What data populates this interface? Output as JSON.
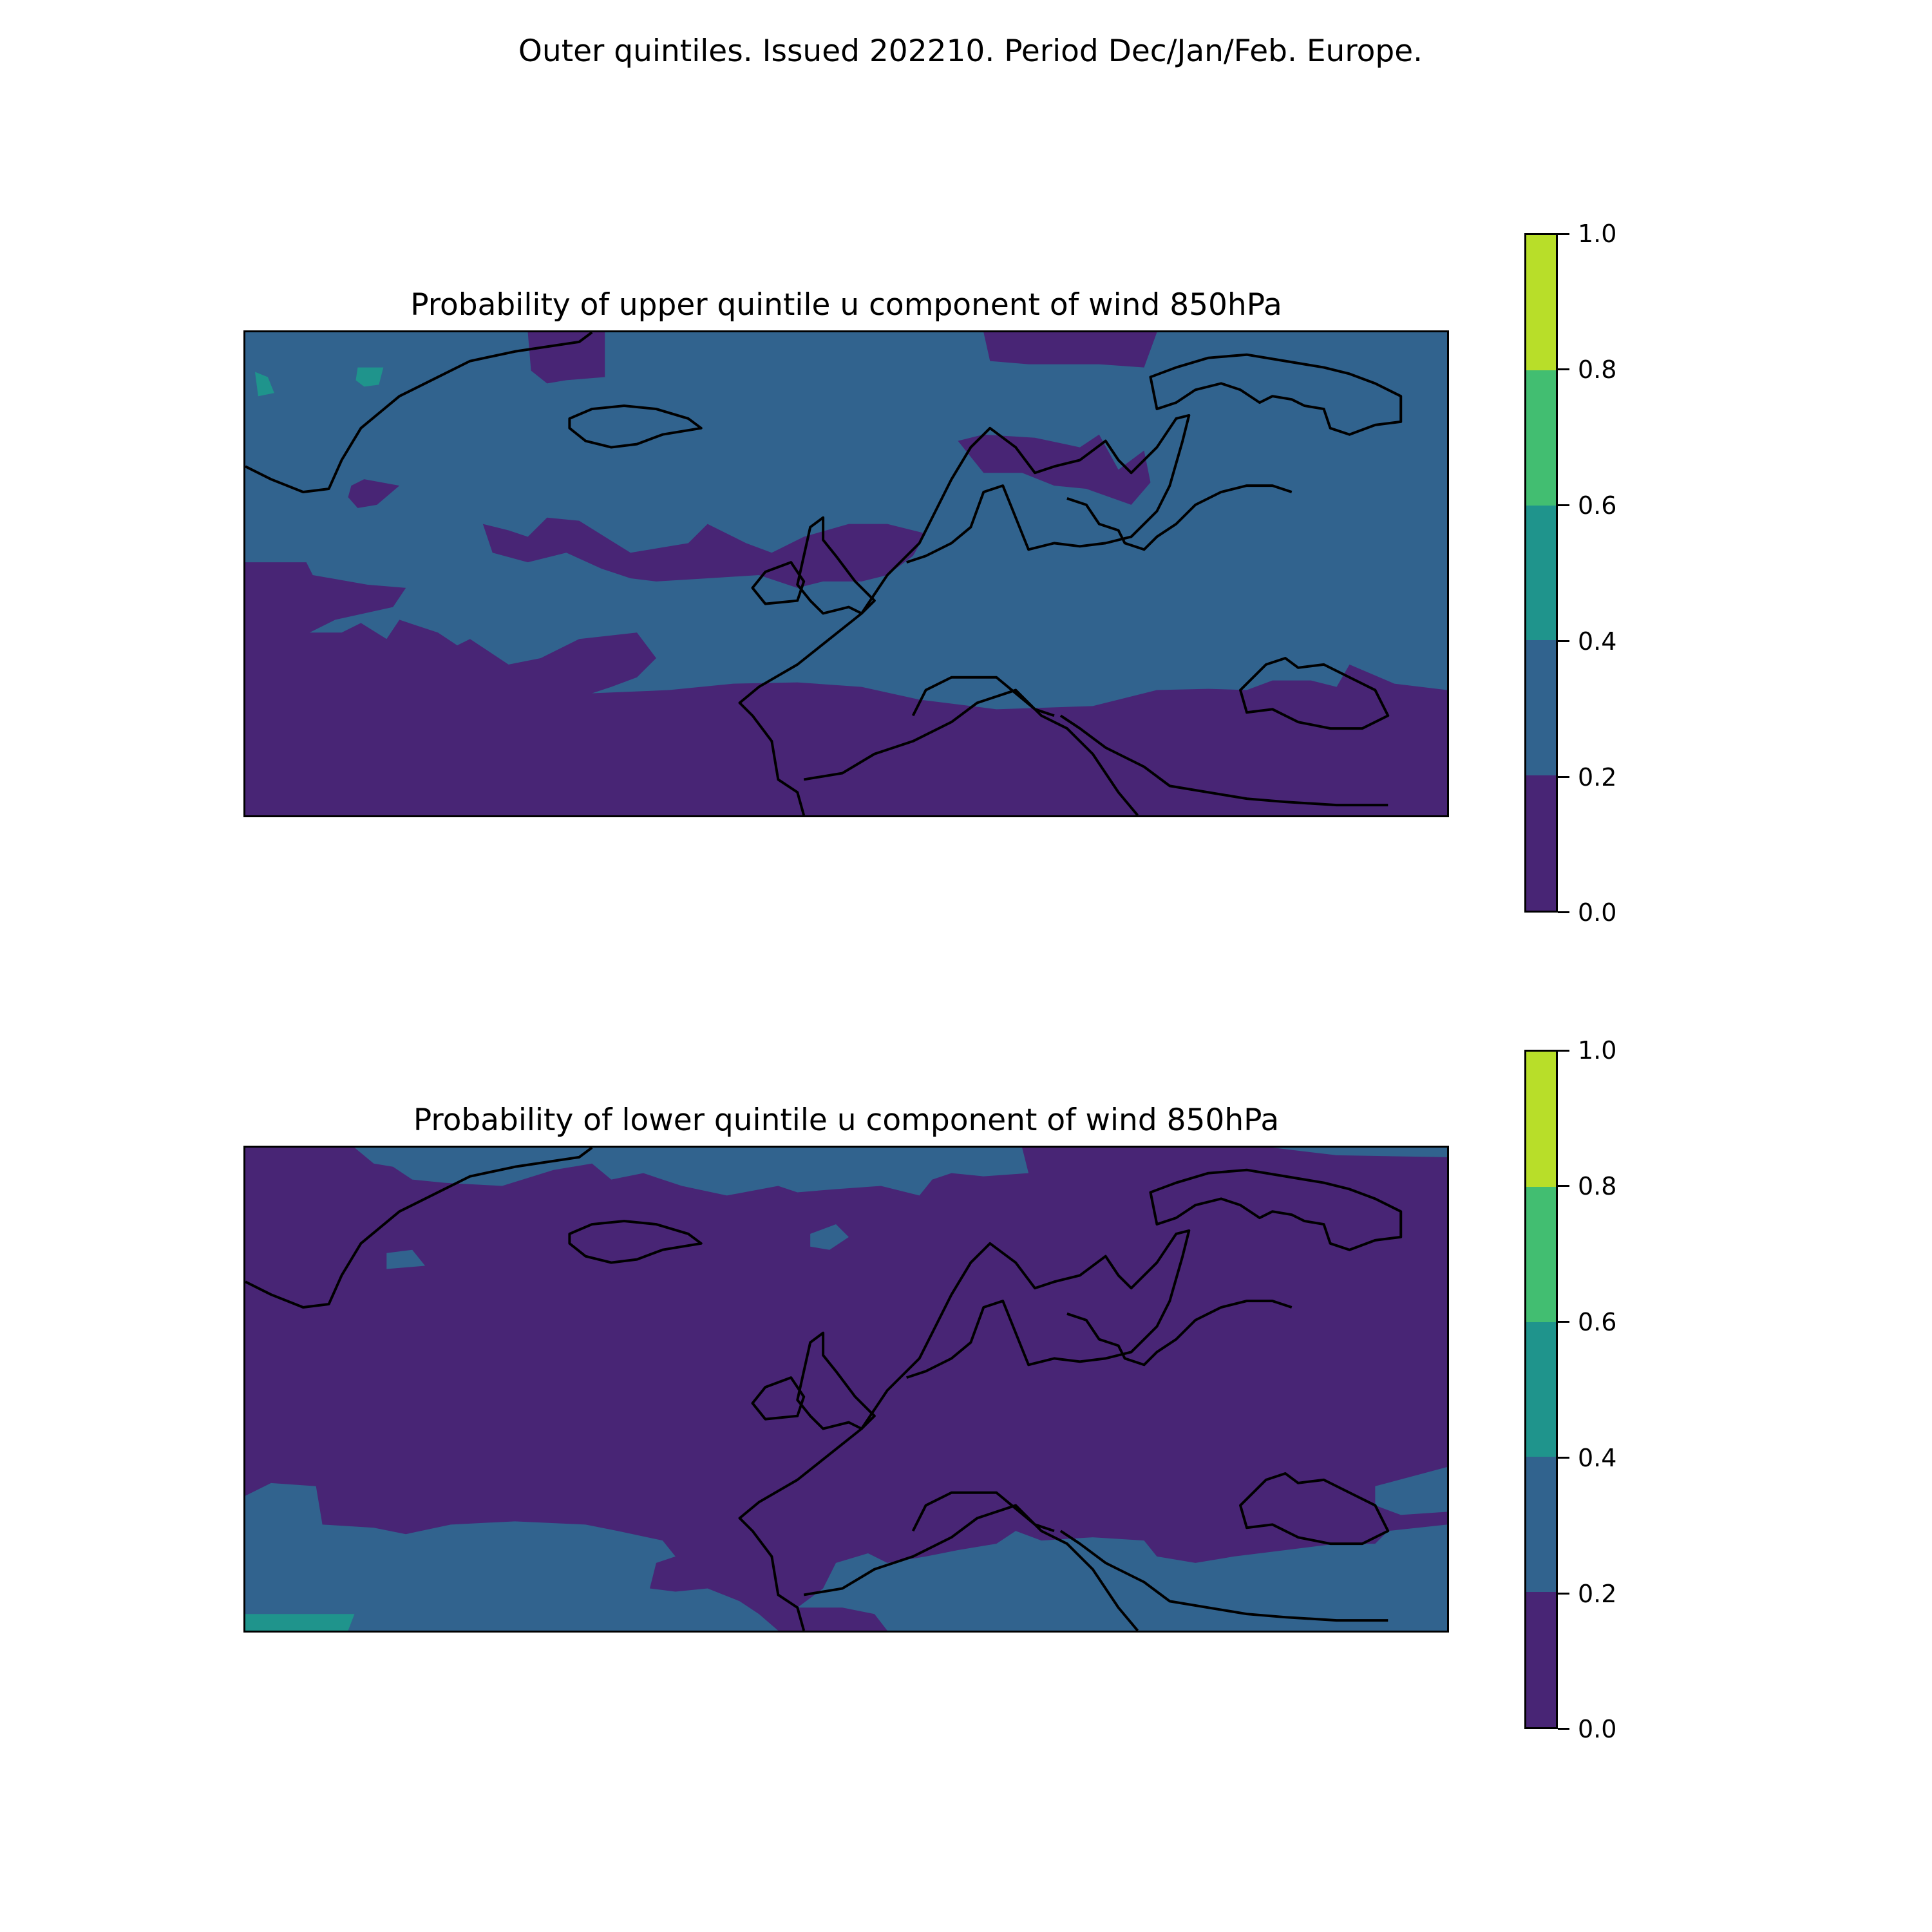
{
  "suptitle": "Outer quintiles. Issued 202210. Period Dec/Jan/Feb. Europe.",
  "levels": [
    {
      "range": [
        0.0,
        0.2
      ],
      "color": "#482575"
    },
    {
      "range": [
        0.2,
        0.4
      ],
      "color": "#31638E"
    },
    {
      "range": [
        0.4,
        0.6
      ],
      "color": "#1F948C"
    },
    {
      "range": [
        0.6,
        0.8
      ],
      "color": "#42BE71"
    },
    {
      "range": [
        0.8,
        1.0
      ],
      "color": "#B8DE29"
    }
  ],
  "colorbar_ticks": [
    "1.0",
    "0.8",
    "0.6",
    "0.4",
    "0.2",
    "0.0"
  ],
  "chart_data": [
    {
      "type": "heatmap",
      "title": "Probability of upper quintile u component of wind 850hPa",
      "background_level": "0.2-0.4",
      "regions": [
        {
          "level": "0.0-0.2",
          "area": "North Atlantic west of UK, British Isles and North Sea"
        },
        {
          "level": "0.0-0.2",
          "area": "Subtropical Atlantic, Iberia, Mediterranean, North Africa, Turkey"
        },
        {
          "level": "0.0-0.2",
          "area": "Far north near Svalbard and Barents Sea"
        },
        {
          "level": "0.0-0.2",
          "area": "Northern Scandinavia band"
        },
        {
          "level": "0.2-0.4",
          "area": "Central and Eastern Europe, Scandinavia, Russia, Greenland"
        },
        {
          "level": "0.4-0.6",
          "area": "Small patches over Greenland"
        }
      ]
    },
    {
      "type": "heatmap",
      "title": "Probability of lower quintile u component of wind 850hPa",
      "background_level": "0.0-0.2",
      "regions": [
        {
          "level": "0.0-0.2",
          "area": "Most of Europe and North Atlantic"
        },
        {
          "level": "0.2-0.4",
          "area": "Arctic band near Greenland and Svalbard"
        },
        {
          "level": "0.2-0.4",
          "area": "Subtropical Atlantic, Mediterranean, Turkey and Caspian"
        },
        {
          "level": "0.4-0.6",
          "area": "Small patch in far south-west corner"
        }
      ]
    }
  ]
}
